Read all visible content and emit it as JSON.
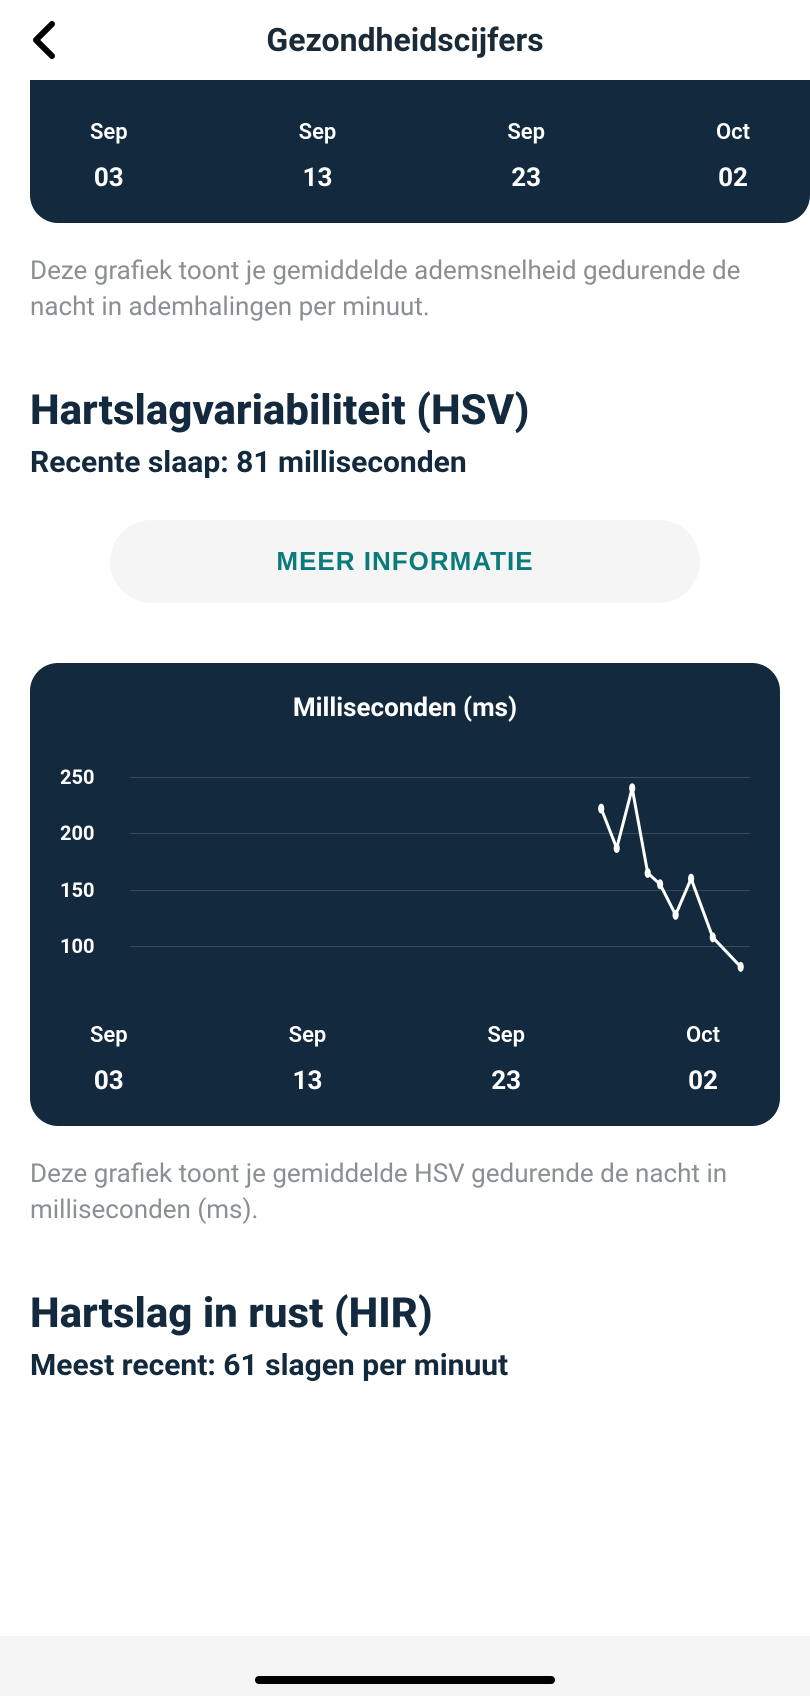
{
  "header": {
    "title": "Gezondheidscijfers"
  },
  "breathing_chart_tail": {
    "xaxis": [
      {
        "month": "Sep",
        "day": "03"
      },
      {
        "month": "Sep",
        "day": "13"
      },
      {
        "month": "Sep",
        "day": "23"
      },
      {
        "month": "Oct",
        "day": "02"
      }
    ],
    "background_color": "#13293d"
  },
  "breathing_desc": "Deze grafiek toont je gemiddelde ademsnelheid gedurende de nacht in ademhalingen per minuut.",
  "hsv": {
    "title": "Hartslagvariabiliteit (HSV)",
    "subtitle": "Recente slaap: 81 milliseconden",
    "info_button": "MEER INFORMATIE",
    "chart": {
      "type": "line",
      "title": "Milliseconden (ms)",
      "ylim": [
        50,
        280
      ],
      "yticks": [
        100,
        150,
        200,
        250
      ],
      "xaxis": [
        {
          "month": "Sep",
          "day": "03"
        },
        {
          "month": "Sep",
          "day": "13"
        },
        {
          "month": "Sep",
          "day": "23"
        },
        {
          "month": "Oct",
          "day": "02"
        }
      ],
      "points": [
        {
          "x": 0.76,
          "y": 222
        },
        {
          "x": 0.785,
          "y": 187
        },
        {
          "x": 0.81,
          "y": 240
        },
        {
          "x": 0.835,
          "y": 165
        },
        {
          "x": 0.855,
          "y": 155
        },
        {
          "x": 0.88,
          "y": 128
        },
        {
          "x": 0.905,
          "y": 160
        },
        {
          "x": 0.94,
          "y": 108
        },
        {
          "x": 0.985,
          "y": 82
        }
      ],
      "line_color": "#ffffff",
      "line_width": 3,
      "marker_color": "#ffffff",
      "marker_radius": 5,
      "grid_color": "#3a4a5a",
      "background_color": "#13293d"
    },
    "desc": "Deze grafiek toont je gemiddelde HSV gedurende de nacht in milliseconden (ms)."
  },
  "hir": {
    "title": "Hartslag in rust (HIR)",
    "subtitle": "Meest recent: 61 slagen per minuut"
  },
  "colors": {
    "card_bg": "#13293d",
    "text_dark": "#13293d",
    "text_muted": "#8a8f94",
    "accent": "#0b7a7a",
    "btn_bg": "#f5f5f5"
  }
}
